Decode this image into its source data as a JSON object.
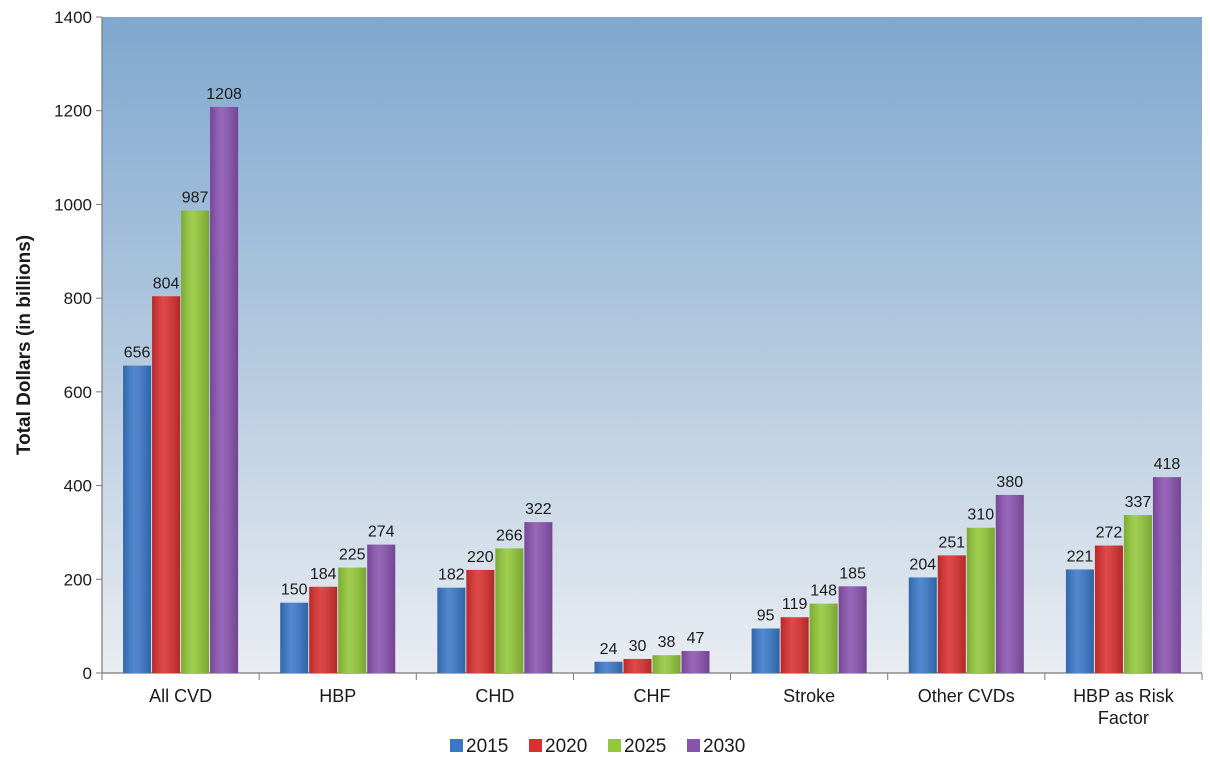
{
  "chart_data": {
    "type": "bar",
    "ylabel": "Total Dollars (in billions)",
    "xlabel": "",
    "ylim": [
      0,
      1400
    ],
    "yticks": [
      0,
      200,
      400,
      600,
      800,
      1000,
      1200,
      1400
    ],
    "categories": [
      [
        "All CVD"
      ],
      [
        "HBP"
      ],
      [
        "CHD"
      ],
      [
        "CHF"
      ],
      [
        "Stroke"
      ],
      [
        "Other CVDs"
      ],
      [
        "HBP as Risk",
        "Factor"
      ]
    ],
    "series": [
      {
        "name": "2015",
        "color": "#3a78c8",
        "values": [
          656,
          150,
          182,
          24,
          95,
          204,
          221
        ]
      },
      {
        "name": "2020",
        "color": "#d93030",
        "values": [
          804,
          184,
          220,
          30,
          119,
          251,
          272
        ]
      },
      {
        "name": "2025",
        "color": "#92c83a",
        "values": [
          987,
          225,
          266,
          38,
          148,
          310,
          337
        ]
      },
      {
        "name": "2030",
        "color": "#8a52b0",
        "values": [
          1208,
          274,
          322,
          47,
          185,
          380,
          418
        ]
      }
    ],
    "legend_position": "bottom",
    "grid": false,
    "background": "gradient"
  }
}
